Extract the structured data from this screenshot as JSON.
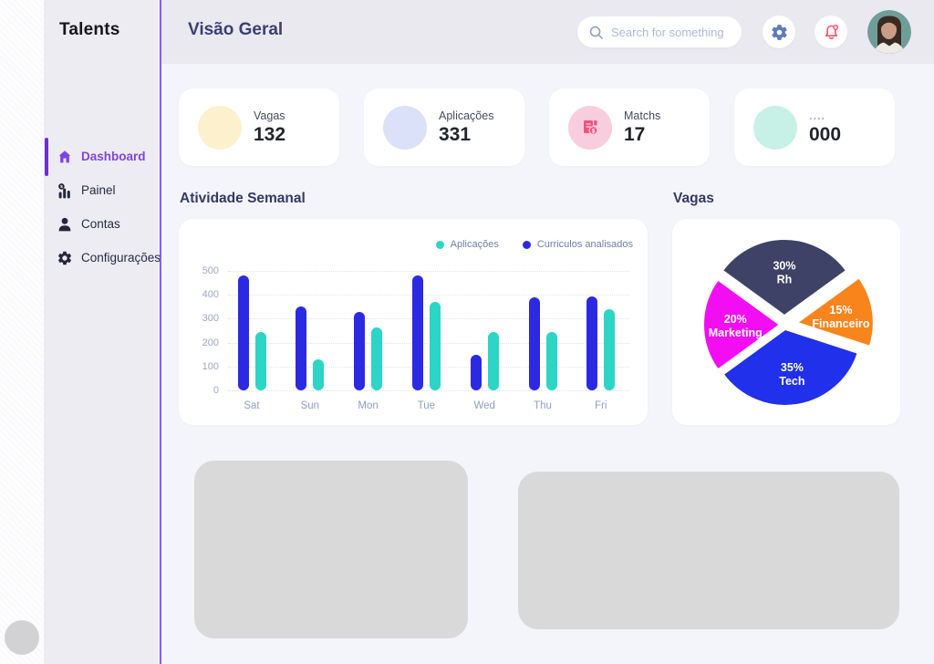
{
  "brand": "Talents",
  "sidebar": {
    "items": [
      {
        "label": "Dashboard",
        "icon": "home-icon",
        "active": true
      },
      {
        "label": "Painel",
        "icon": "chart-coin-icon",
        "active": false
      },
      {
        "label": "Contas",
        "icon": "user-icon",
        "active": false
      },
      {
        "label": "Configurações",
        "icon": "gear-icon",
        "active": false
      }
    ]
  },
  "header": {
    "title": "Visão Geral",
    "search_placeholder": "Search for something"
  },
  "stats": [
    {
      "label": "Vagas",
      "value": "132",
      "circle_color": "#fcf0cd"
    },
    {
      "label": "Aplicações",
      "value": "331",
      "circle_color": "#dbe1f9"
    },
    {
      "label": "Matchs",
      "value": "17",
      "circle_color": "#f8cdde",
      "icon": "invoice-dollar-icon"
    },
    {
      "label": "....",
      "value": "000",
      "circle_color": "#c7f1e6"
    }
  ],
  "sections": {
    "weekly_title": "Atividade Semanal",
    "pie_title": "Vagas"
  },
  "colors": {
    "accent_purple": "#8143e6",
    "bell_red": "#f4506a",
    "gear_blue": "#5d7bb9"
  },
  "chart_data": [
    {
      "type": "bar",
      "title": "Atividade Semanal",
      "categories": [
        "Sat",
        "Sun",
        "Mon",
        "Tue",
        "Wed",
        "Thu",
        "Fri"
      ],
      "series": [
        {
          "name": "Aplicações",
          "color": "#2cd5c6",
          "values": [
            245,
            130,
            265,
            370,
            245,
            245,
            340
          ]
        },
        {
          "name": "Curriculos analisados",
          "color": "#2b2ae2",
          "values": [
            480,
            350,
            330,
            480,
            150,
            390,
            395
          ]
        }
      ],
      "ylim": [
        0,
        500
      ],
      "yticks": [
        0,
        100,
        200,
        300,
        400,
        500
      ],
      "grid": "horizontal-dotted",
      "legend_position": "top-right"
    },
    {
      "type": "pie",
      "title": "Vagas",
      "slices": [
        {
          "label": "Rh",
          "percent": 30,
          "color": "#3d4266"
        },
        {
          "label": "Financeiro",
          "percent": 15,
          "color": "#f8841c"
        },
        {
          "label": "Tech",
          "percent": 35,
          "color": "#2130ea"
        },
        {
          "label": "Marketing",
          "percent": 20,
          "color": "#f30df2"
        }
      ],
      "start_angle_deg": -54,
      "exploded": true,
      "labels_inside": true
    }
  ]
}
